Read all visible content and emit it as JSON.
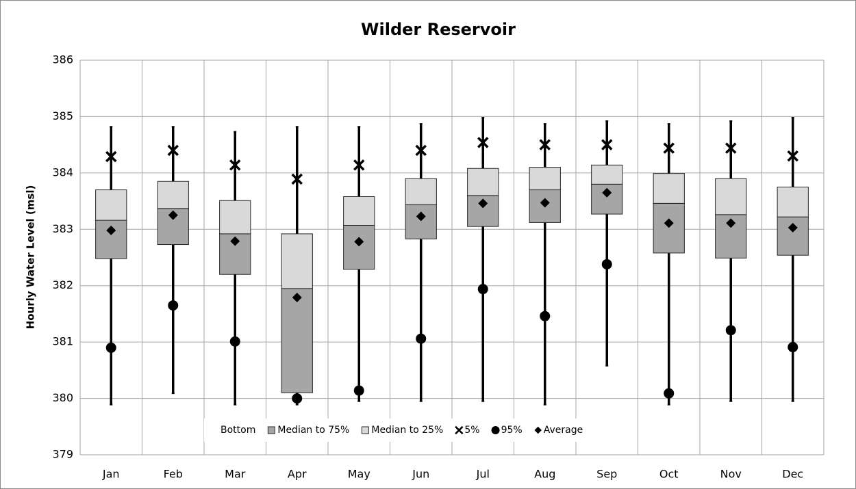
{
  "chart_data": {
    "type": "box",
    "title": "Wilder Reservoir",
    "y_label": "Hourly Water Level (msl)",
    "categories": [
      "Jan",
      "Feb",
      "Mar",
      "Apr",
      "May",
      "Jun",
      "Jul",
      "Aug",
      "Sep",
      "Oct",
      "Nov",
      "Dec"
    ],
    "ylim": [
      379,
      386
    ],
    "yticks": [
      379,
      380,
      381,
      382,
      383,
      384,
      385,
      386
    ],
    "grid": true,
    "legend": "bottom",
    "series": [
      {
        "name": "Bottom",
        "kind": "stack",
        "color": "none",
        "values": [
          382.48,
          382.73,
          382.2,
          380.1,
          382.29,
          382.83,
          383.05,
          383.12,
          383.27,
          382.58,
          382.49,
          382.54
        ]
      },
      {
        "name": "Median to 75%",
        "kind": "stack",
        "color": "#a6a6a6",
        "values": [
          0.68,
          0.64,
          0.72,
          1.85,
          0.78,
          0.61,
          0.55,
          0.58,
          0.53,
          0.88,
          0.77,
          0.68
        ]
      },
      {
        "name": "Median to 25%",
        "kind": "stack",
        "color": "#d9d9d9",
        "values": [
          0.54,
          0.48,
          0.59,
          0.97,
          0.51,
          0.46,
          0.48,
          0.4,
          0.34,
          0.53,
          0.64,
          0.53
        ]
      },
      {
        "name": "5%",
        "kind": "marker",
        "marker": "x",
        "color": "#000000",
        "values": [
          384.29,
          384.4,
          384.14,
          383.89,
          384.14,
          384.4,
          384.54,
          384.5,
          384.5,
          384.44,
          384.44,
          384.3
        ]
      },
      {
        "name": "95%",
        "kind": "marker",
        "marker": "circle",
        "color": "#000000",
        "values": [
          380.9,
          381.65,
          381.01,
          380.0,
          380.14,
          381.06,
          381.94,
          381.46,
          382.38,
          380.09,
          381.21,
          380.91
        ]
      },
      {
        "name": "Average",
        "kind": "marker",
        "marker": "diamond",
        "color": "#000000",
        "values": [
          382.98,
          383.25,
          382.79,
          381.79,
          382.78,
          383.23,
          383.46,
          383.47,
          383.65,
          383.11,
          383.11,
          383.03
        ]
      }
    ],
    "whisker_low": [
      379.89,
      380.09,
      379.89,
      379.89,
      379.95,
      379.95,
      379.95,
      379.89,
      380.58,
      379.89,
      379.95,
      379.95
    ],
    "whisker_high": [
      384.82,
      384.82,
      384.73,
      384.82,
      384.82,
      384.87,
      384.98,
      384.87,
      384.92,
      384.87,
      384.92,
      384.98
    ]
  }
}
